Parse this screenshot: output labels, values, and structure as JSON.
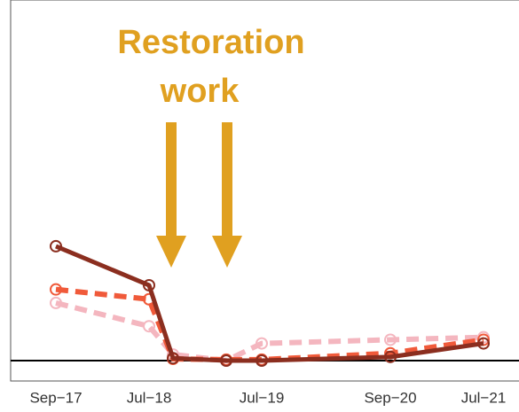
{
  "chart_data": {
    "type": "line",
    "annotation": [
      "Restoration",
      "work"
    ],
    "categories": [
      "Sep−17",
      "Jul−18",
      null,
      null,
      "Jul−19",
      "Sep−20",
      "Jul−21"
    ],
    "ylim": [
      0,
      10
    ],
    "series": [
      {
        "color": "#8b2e1f",
        "dash": "solid",
        "values": [
          4.66,
          3.07,
          0.1,
          0,
          0,
          0.15,
          0.7
        ]
      },
      {
        "color": "#f05a3a",
        "dash": "dashed",
        "values": [
          2.9,
          2.5,
          0.07,
          0.04,
          0.04,
          0.3,
          0.85
        ]
      },
      {
        "color": "#f4b6bf",
        "dash": "dashed",
        "values": [
          2.35,
          1.4,
          0.25,
          0,
          0.7,
          0.85,
          0.95
        ]
      }
    ]
  }
}
